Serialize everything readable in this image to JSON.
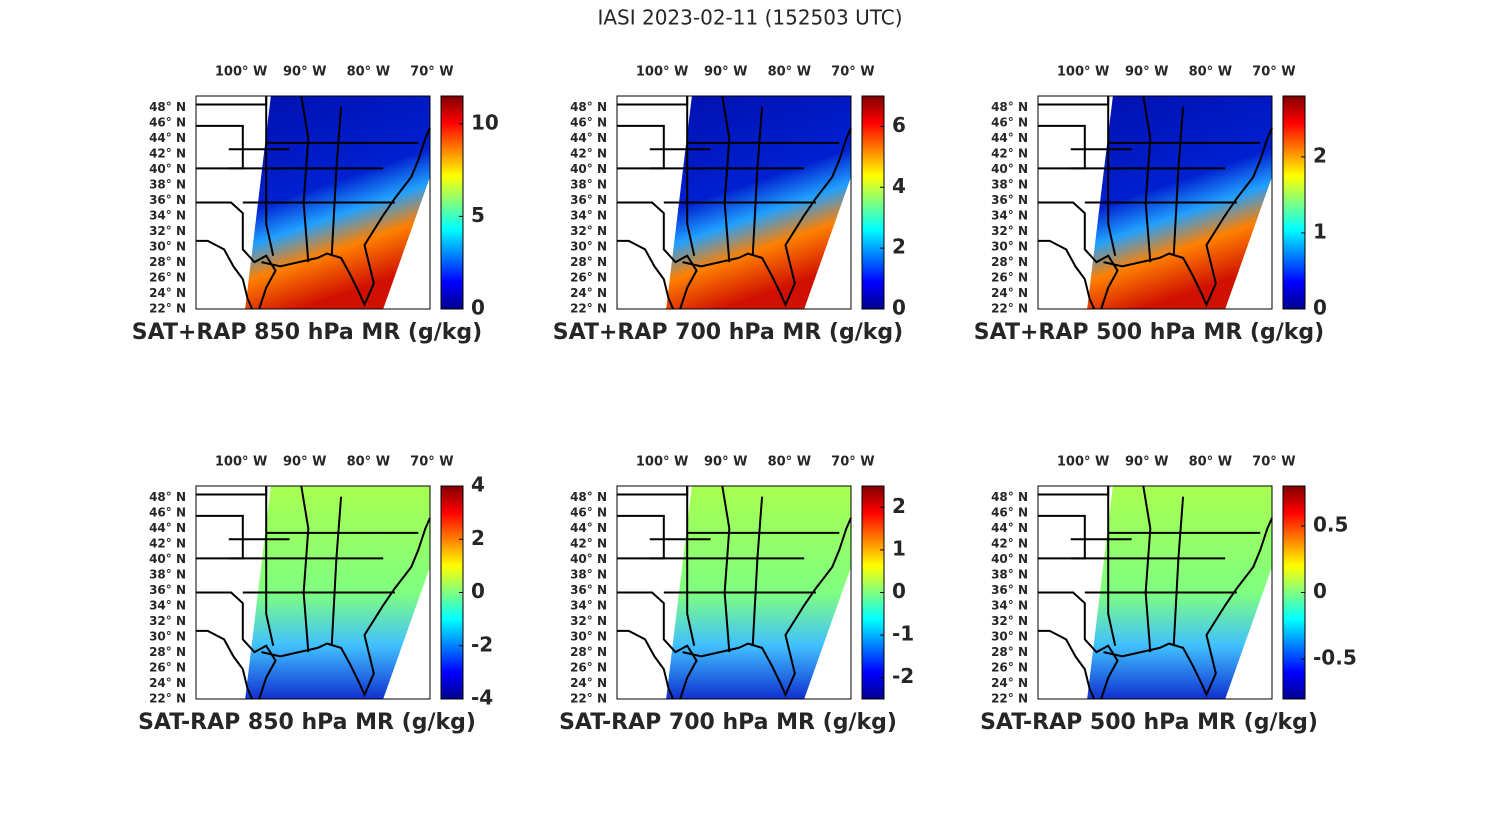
{
  "title": "IASI 2023-02-11 (152503 UTC)",
  "panels": [
    {
      "title": "SAT+RAP 850 hPa MR (g/kg)",
      "xlim": [
        107.1,
        70.3
      ],
      "ylim": [
        22,
        49.5
      ],
      "lon_ticks": [
        {
          "value": 100,
          "label": "100° W"
        },
        {
          "value": 90,
          "label": "90° W"
        },
        {
          "value": 80,
          "label": "80° W"
        },
        {
          "value": 70,
          "label": "70° W"
        }
      ],
      "lat_ticks": [
        {
          "value": 22,
          "label": "22° N"
        },
        {
          "value": 24,
          "label": "24° N"
        },
        {
          "value": 26,
          "label": "26° N"
        },
        {
          "value": 28,
          "label": "28° N"
        },
        {
          "value": 30,
          "label": "30° N"
        },
        {
          "value": 32,
          "label": "32° N"
        },
        {
          "value": 34,
          "label": "34° N"
        },
        {
          "value": 36,
          "label": "36° N"
        },
        {
          "value": 38,
          "label": "38° N"
        },
        {
          "value": 40,
          "label": "40° N"
        },
        {
          "value": 42,
          "label": "42° N"
        },
        {
          "value": 44,
          "label": "44° N"
        },
        {
          "value": 46,
          "label": "46° N"
        },
        {
          "value": 48,
          "label": "48° N"
        }
      ],
      "colorbar": {
        "lim": [
          0,
          11.5
        ],
        "ticks": [
          0,
          5,
          10
        ]
      }
    },
    {
      "title": "SAT+RAP 700 hPa MR (g/kg)",
      "xlim": [
        107.1,
        70.3
      ],
      "ylim": [
        22,
        49.5
      ],
      "lon_ticks": [
        {
          "value": 100,
          "label": "100° W"
        },
        {
          "value": 90,
          "label": "90° W"
        },
        {
          "value": 80,
          "label": "80° W"
        },
        {
          "value": 70,
          "label": "70° W"
        }
      ],
      "lat_ticks": [
        {
          "value": 22,
          "label": "22° N"
        },
        {
          "value": 24,
          "label": "24° N"
        },
        {
          "value": 26,
          "label": "26° N"
        },
        {
          "value": 28,
          "label": "28° N"
        },
        {
          "value": 30,
          "label": "30° N"
        },
        {
          "value": 32,
          "label": "32° N"
        },
        {
          "value": 34,
          "label": "34° N"
        },
        {
          "value": 36,
          "label": "36° N"
        },
        {
          "value": 38,
          "label": "38° N"
        },
        {
          "value": 40,
          "label": "40° N"
        },
        {
          "value": 42,
          "label": "42° N"
        },
        {
          "value": 44,
          "label": "44° N"
        },
        {
          "value": 46,
          "label": "46° N"
        },
        {
          "value": 48,
          "label": "48° N"
        }
      ],
      "colorbar": {
        "lim": [
          0,
          7
        ],
        "ticks": [
          0,
          2,
          4,
          6
        ]
      }
    },
    {
      "title": "SAT+RAP 500 hPa MR (g/kg)",
      "xlim": [
        107.1,
        70.3
      ],
      "ylim": [
        22,
        49.5
      ],
      "lon_ticks": [
        {
          "value": 100,
          "label": "100° W"
        },
        {
          "value": 90,
          "label": "90° W"
        },
        {
          "value": 80,
          "label": "80° W"
        },
        {
          "value": 70,
          "label": "70° W"
        }
      ],
      "lat_ticks": [
        {
          "value": 22,
          "label": "22° N"
        },
        {
          "value": 24,
          "label": "24° N"
        },
        {
          "value": 26,
          "label": "26° N"
        },
        {
          "value": 28,
          "label": "28° N"
        },
        {
          "value": 30,
          "label": "30° N"
        },
        {
          "value": 32,
          "label": "32° N"
        },
        {
          "value": 34,
          "label": "34° N"
        },
        {
          "value": 36,
          "label": "36° N"
        },
        {
          "value": 38,
          "label": "38° N"
        },
        {
          "value": 40,
          "label": "40° N"
        },
        {
          "value": 42,
          "label": "42° N"
        },
        {
          "value": 44,
          "label": "44° N"
        },
        {
          "value": 46,
          "label": "46° N"
        },
        {
          "value": 48,
          "label": "48° N"
        }
      ],
      "colorbar": {
        "lim": [
          0,
          2.8
        ],
        "ticks": [
          0,
          1,
          2
        ]
      }
    },
    {
      "title": "SAT-RAP 850 hPa MR (g/kg)",
      "xlim": [
        107.1,
        70.3
      ],
      "ylim": [
        22,
        49.5
      ],
      "lon_ticks": [
        {
          "value": 100,
          "label": "100° W"
        },
        {
          "value": 90,
          "label": "90° W"
        },
        {
          "value": 80,
          "label": "80° W"
        },
        {
          "value": 70,
          "label": "70° W"
        }
      ],
      "lat_ticks": [
        {
          "value": 22,
          "label": "22° N"
        },
        {
          "value": 24,
          "label": "24° N"
        },
        {
          "value": 26,
          "label": "26° N"
        },
        {
          "value": 28,
          "label": "28° N"
        },
        {
          "value": 30,
          "label": "30° N"
        },
        {
          "value": 32,
          "label": "32° N"
        },
        {
          "value": 34,
          "label": "34° N"
        },
        {
          "value": 36,
          "label": "36° N"
        },
        {
          "value": 38,
          "label": "38° N"
        },
        {
          "value": 40,
          "label": "40° N"
        },
        {
          "value": 42,
          "label": "42° N"
        },
        {
          "value": 44,
          "label": "44° N"
        },
        {
          "value": 46,
          "label": "46° N"
        },
        {
          "value": 48,
          "label": "48° N"
        }
      ],
      "colorbar": {
        "lim": [
          -4,
          4
        ],
        "ticks": [
          -4,
          -2,
          0,
          2,
          4
        ]
      }
    },
    {
      "title": "SAT-RAP 700 hPa MR (g/kg)",
      "xlim": [
        107.1,
        70.3
      ],
      "ylim": [
        22,
        49.5
      ],
      "lon_ticks": [
        {
          "value": 100,
          "label": "100° W"
        },
        {
          "value": 90,
          "label": "90° W"
        },
        {
          "value": 80,
          "label": "80° W"
        },
        {
          "value": 70,
          "label": "70° W"
        }
      ],
      "lat_ticks": [
        {
          "value": 22,
          "label": "22° N"
        },
        {
          "value": 24,
          "label": "24° N"
        },
        {
          "value": 26,
          "label": "26° N"
        },
        {
          "value": 28,
          "label": "28° N"
        },
        {
          "value": 30,
          "label": "30° N"
        },
        {
          "value": 32,
          "label": "32° N"
        },
        {
          "value": 34,
          "label": "34° N"
        },
        {
          "value": 36,
          "label": "36° N"
        },
        {
          "value": 38,
          "label": "38° N"
        },
        {
          "value": 40,
          "label": "40° N"
        },
        {
          "value": 42,
          "label": "42° N"
        },
        {
          "value": 44,
          "label": "44° N"
        },
        {
          "value": 46,
          "label": "46° N"
        },
        {
          "value": 48,
          "label": "48° N"
        }
      ],
      "colorbar": {
        "lim": [
          -2.5,
          2.5
        ],
        "ticks": [
          -2,
          -1,
          0,
          1,
          2
        ]
      }
    },
    {
      "title": "SAT-RAP 500 hPa MR (g/kg)",
      "xlim": [
        107.1,
        70.3
      ],
      "ylim": [
        22,
        49.5
      ],
      "lon_ticks": [
        {
          "value": 100,
          "label": "100° W"
        },
        {
          "value": 90,
          "label": "90° W"
        },
        {
          "value": 80,
          "label": "80° W"
        },
        {
          "value": 70,
          "label": "70° W"
        }
      ],
      "lat_ticks": [
        {
          "value": 22,
          "label": "22° N"
        },
        {
          "value": 24,
          "label": "24° N"
        },
        {
          "value": 26,
          "label": "26° N"
        },
        {
          "value": 28,
          "label": "28° N"
        },
        {
          "value": 30,
          "label": "30° N"
        },
        {
          "value": 32,
          "label": "32° N"
        },
        {
          "value": 34,
          "label": "34° N"
        },
        {
          "value": 36,
          "label": "36° N"
        },
        {
          "value": 38,
          "label": "38° N"
        },
        {
          "value": 40,
          "label": "40° N"
        },
        {
          "value": 42,
          "label": "42° N"
        },
        {
          "value": 44,
          "label": "44° N"
        },
        {
          "value": 46,
          "label": "46° N"
        },
        {
          "value": 48,
          "label": "48° N"
        }
      ],
      "colorbar": {
        "lim": [
          -0.8,
          0.8
        ],
        "ticks": [
          -0.5,
          0,
          0.5
        ]
      }
    }
  ]
}
